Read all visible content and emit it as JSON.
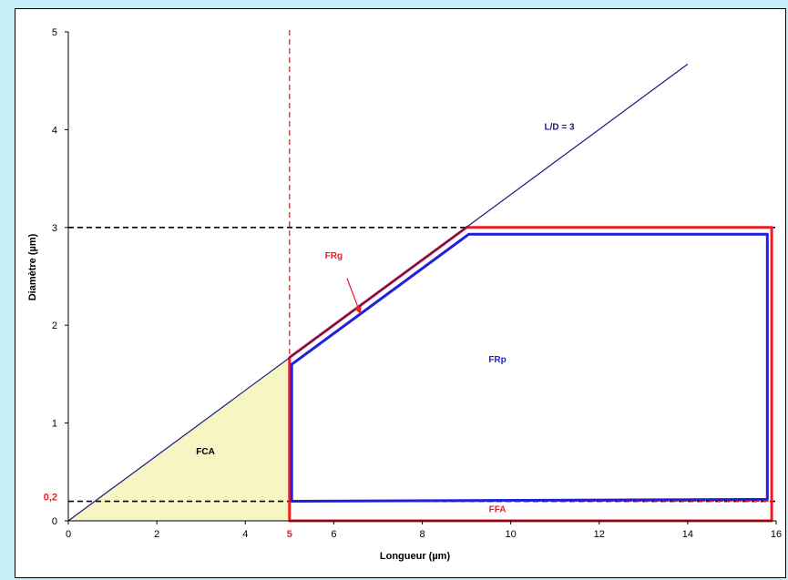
{
  "chart_data": {
    "type": "line",
    "xlabel": "Longueur (µm)",
    "ylabel": "Diamètre (µm)",
    "xlim": [
      0,
      16
    ],
    "ylim": [
      0,
      5
    ],
    "x_ticks": [
      0,
      2,
      4,
      6,
      8,
      10,
      12,
      14,
      16
    ],
    "y_ticks": [
      0,
      1,
      2,
      3,
      4,
      5
    ],
    "special_ticks": {
      "x": "5",
      "y": "0,2"
    },
    "grid": false,
    "series": [
      {
        "name": "L/D = 3",
        "style": "line",
        "color": "#1a1a7a",
        "points": [
          [
            0,
            0
          ],
          [
            14,
            4.67
          ]
        ]
      },
      {
        "name": "FRg",
        "style": "polygon",
        "color": "#ee1c25",
        "points": [
          [
            5,
            0
          ],
          [
            5,
            1.67
          ],
          [
            9,
            3
          ],
          [
            15.9,
            3
          ],
          [
            15.9,
            0
          ]
        ]
      },
      {
        "name": "FRp",
        "style": "polygon",
        "color": "#1f1fdd",
        "points": [
          [
            5.05,
            0.2
          ],
          [
            5.05,
            1.6
          ],
          [
            9.05,
            2.93
          ],
          [
            15.8,
            2.93
          ],
          [
            15.8,
            0.22
          ]
        ]
      },
      {
        "name": "FCA",
        "style": "filled-region",
        "color": "#f7f5c4",
        "points": [
          [
            0,
            0
          ],
          [
            5,
            1.667
          ],
          [
            5,
            0
          ]
        ]
      }
    ],
    "reference_lines": [
      {
        "axis": "y",
        "value": 3,
        "color": "#000000",
        "style": "dashed"
      },
      {
        "axis": "y",
        "value": 0.2,
        "color": "#000000",
        "style": "dashed"
      },
      {
        "axis": "x",
        "value": 5,
        "color": "#ee1c25",
        "style": "dashed"
      },
      {
        "axis": "y",
        "value": 0.2,
        "color": "#ee1c25",
        "style": "dashed",
        "xrange": [
          5,
          15.9
        ]
      }
    ],
    "annotations": [
      {
        "text": "L/D = 3",
        "x": 11.1,
        "y": 4.0,
        "color": "#1a1a7a"
      },
      {
        "text": "FRg",
        "x": 6.0,
        "y": 2.68,
        "color": "#ee1c25"
      },
      {
        "text": "FRp",
        "x": 9.7,
        "y": 1.62,
        "color": "#1f1fdd"
      },
      {
        "text": "FCA",
        "x": 3.1,
        "y": 0.68,
        "color": "#000000"
      },
      {
        "text": "FFA",
        "x": 9.7,
        "y": 0.09,
        "color": "#ee1c25"
      }
    ],
    "arrow": {
      "from": [
        6.3,
        2.48
      ],
      "to": [
        6.6,
        2.12
      ],
      "color": "#ee1c25"
    }
  }
}
